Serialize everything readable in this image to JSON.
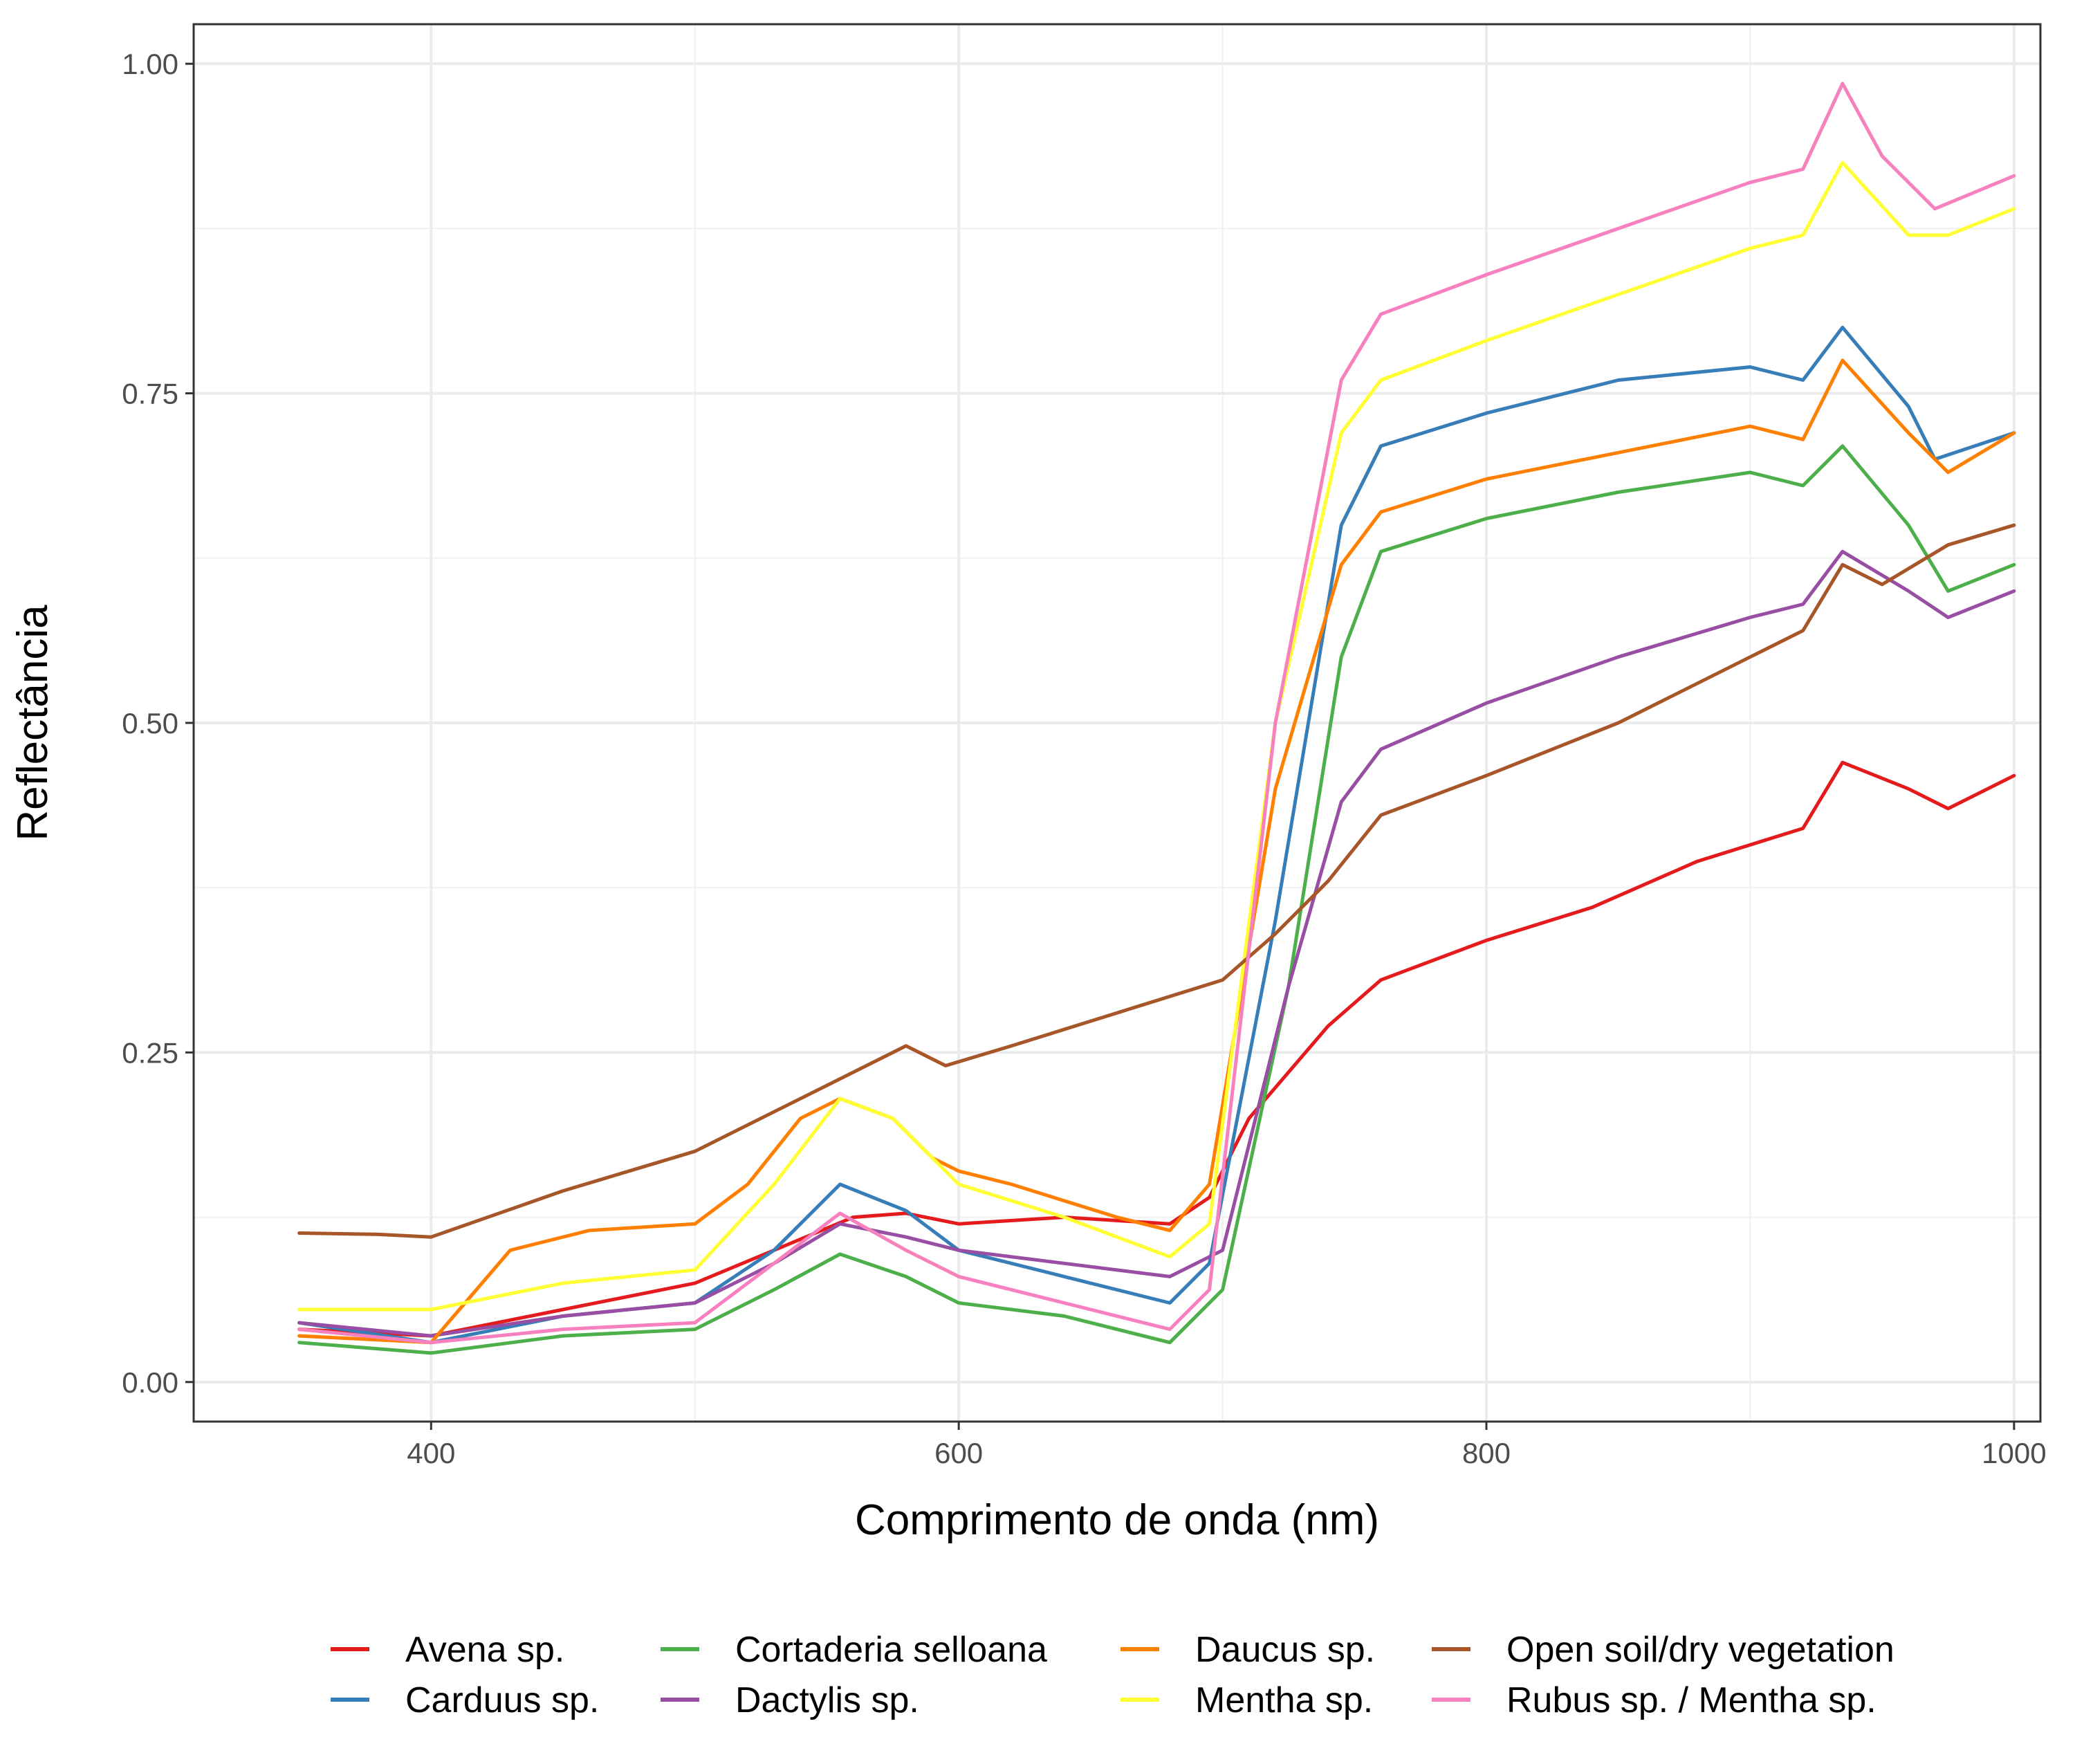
{
  "chart_data": {
    "type": "line",
    "xlabel": "Comprimento de onda (nm)",
    "ylabel": "Reflectância",
    "xlim": [
      310,
      1010
    ],
    "ylim": [
      -0.03,
      1.03
    ],
    "x_ticks": [
      400,
      600,
      800,
      1000
    ],
    "x_tick_labels": [
      "400",
      "600",
      "800",
      "1000"
    ],
    "y_ticks": [
      0,
      0.25,
      0.5,
      0.75,
      1
    ],
    "y_tick_labels": [
      "0.00",
      "0.25",
      "0.50",
      "0.75",
      "1.00"
    ],
    "grid": true,
    "legend_position": "bottom",
    "series": [
      {
        "name": "Avena sp.",
        "color": "#E41A1C",
        "points": [
          [
            350,
            0.04
          ],
          [
            400,
            0.035
          ],
          [
            450,
            0.055
          ],
          [
            500,
            0.075
          ],
          [
            530,
            0.1
          ],
          [
            560,
            0.125
          ],
          [
            580,
            0.128
          ],
          [
            600,
            0.12
          ],
          [
            640,
            0.125
          ],
          [
            680,
            0.12
          ],
          [
            695,
            0.14
          ],
          [
            710,
            0.2
          ],
          [
            740,
            0.27
          ],
          [
            760,
            0.305
          ],
          [
            800,
            0.335
          ],
          [
            840,
            0.36
          ],
          [
            880,
            0.395
          ],
          [
            920,
            0.42
          ],
          [
            935,
            0.47
          ],
          [
            960,
            0.45
          ],
          [
            975,
            0.435
          ],
          [
            1000,
            0.46
          ]
        ]
      },
      {
        "name": "Carduus sp.",
        "color": "#377EB8",
        "points": [
          [
            350,
            0.045
          ],
          [
            400,
            0.03
          ],
          [
            450,
            0.05
          ],
          [
            500,
            0.06
          ],
          [
            530,
            0.1
          ],
          [
            555,
            0.15
          ],
          [
            580,
            0.13
          ],
          [
            600,
            0.1
          ],
          [
            640,
            0.08
          ],
          [
            680,
            0.06
          ],
          [
            695,
            0.09
          ],
          [
            720,
            0.35
          ],
          [
            745,
            0.65
          ],
          [
            760,
            0.71
          ],
          [
            800,
            0.735
          ],
          [
            850,
            0.76
          ],
          [
            900,
            0.77
          ],
          [
            920,
            0.76
          ],
          [
            935,
            0.8
          ],
          [
            960,
            0.74
          ],
          [
            970,
            0.7
          ],
          [
            1000,
            0.72
          ]
        ]
      },
      {
        "name": "Cortaderia selloana",
        "color": "#4DAF4A",
        "points": [
          [
            350,
            0.03
          ],
          [
            400,
            0.022
          ],
          [
            450,
            0.035
          ],
          [
            500,
            0.04
          ],
          [
            530,
            0.07
          ],
          [
            555,
            0.097
          ],
          [
            580,
            0.08
          ],
          [
            600,
            0.06
          ],
          [
            640,
            0.05
          ],
          [
            680,
            0.03
          ],
          [
            700,
            0.07
          ],
          [
            725,
            0.3
          ],
          [
            745,
            0.55
          ],
          [
            760,
            0.63
          ],
          [
            800,
            0.655
          ],
          [
            850,
            0.675
          ],
          [
            900,
            0.69
          ],
          [
            920,
            0.68
          ],
          [
            935,
            0.71
          ],
          [
            960,
            0.65
          ],
          [
            975,
            0.6
          ],
          [
            1000,
            0.62
          ]
        ]
      },
      {
        "name": "Dactylis sp.",
        "color": "#984EA3",
        "points": [
          [
            350,
            0.045
          ],
          [
            400,
            0.035
          ],
          [
            450,
            0.05
          ],
          [
            500,
            0.06
          ],
          [
            530,
            0.09
          ],
          [
            555,
            0.12
          ],
          [
            580,
            0.11
          ],
          [
            600,
            0.1
          ],
          [
            640,
            0.09
          ],
          [
            680,
            0.08
          ],
          [
            700,
            0.1
          ],
          [
            725,
            0.3
          ],
          [
            745,
            0.44
          ],
          [
            760,
            0.48
          ],
          [
            800,
            0.515
          ],
          [
            850,
            0.55
          ],
          [
            900,
            0.58
          ],
          [
            920,
            0.59
          ],
          [
            935,
            0.63
          ],
          [
            960,
            0.6
          ],
          [
            975,
            0.58
          ],
          [
            1000,
            0.6
          ]
        ]
      },
      {
        "name": "Daucus sp.",
        "color": "#FF7F00",
        "points": [
          [
            350,
            0.035
          ],
          [
            400,
            0.03
          ],
          [
            430,
            0.1
          ],
          [
            460,
            0.115
          ],
          [
            500,
            0.12
          ],
          [
            520,
            0.15
          ],
          [
            540,
            0.2
          ],
          [
            555,
            0.215
          ],
          [
            575,
            0.2
          ],
          [
            590,
            0.17
          ],
          [
            600,
            0.16
          ],
          [
            620,
            0.15
          ],
          [
            660,
            0.125
          ],
          [
            680,
            0.115
          ],
          [
            695,
            0.15
          ],
          [
            720,
            0.45
          ],
          [
            745,
            0.62
          ],
          [
            760,
            0.66
          ],
          [
            800,
            0.685
          ],
          [
            850,
            0.705
          ],
          [
            900,
            0.725
          ],
          [
            920,
            0.715
          ],
          [
            935,
            0.775
          ],
          [
            960,
            0.72
          ],
          [
            975,
            0.69
          ],
          [
            1000,
            0.72
          ]
        ]
      },
      {
        "name": "Mentha sp.",
        "color": "#FFFF33",
        "points": [
          [
            350,
            0.055
          ],
          [
            400,
            0.055
          ],
          [
            450,
            0.075
          ],
          [
            500,
            0.085
          ],
          [
            530,
            0.15
          ],
          [
            555,
            0.215
          ],
          [
            575,
            0.2
          ],
          [
            600,
            0.15
          ],
          [
            640,
            0.125
          ],
          [
            680,
            0.095
          ],
          [
            695,
            0.12
          ],
          [
            720,
            0.5
          ],
          [
            745,
            0.72
          ],
          [
            760,
            0.76
          ],
          [
            800,
            0.79
          ],
          [
            850,
            0.825
          ],
          [
            900,
            0.86
          ],
          [
            920,
            0.87
          ],
          [
            935,
            0.925
          ],
          [
            960,
            0.87
          ],
          [
            975,
            0.87
          ],
          [
            1000,
            0.89
          ]
        ]
      },
      {
        "name": "Open soil/dry vegetation",
        "color": "#A65628",
        "points": [
          [
            350,
            0.113
          ],
          [
            380,
            0.112
          ],
          [
            400,
            0.11
          ],
          [
            450,
            0.145
          ],
          [
            500,
            0.175
          ],
          [
            550,
            0.225
          ],
          [
            580,
            0.255
          ],
          [
            595,
            0.24
          ],
          [
            620,
            0.255
          ],
          [
            660,
            0.28
          ],
          [
            700,
            0.305
          ],
          [
            720,
            0.34
          ],
          [
            740,
            0.38
          ],
          [
            760,
            0.43
          ],
          [
            800,
            0.46
          ],
          [
            850,
            0.5
          ],
          [
            900,
            0.55
          ],
          [
            920,
            0.57
          ],
          [
            935,
            0.62
          ],
          [
            950,
            0.605
          ],
          [
            975,
            0.635
          ],
          [
            1000,
            0.65
          ]
        ]
      },
      {
        "name": "Rubus sp. / Mentha sp.",
        "color": "#F781BF",
        "points": [
          [
            350,
            0.04
          ],
          [
            400,
            0.03
          ],
          [
            450,
            0.04
          ],
          [
            500,
            0.045
          ],
          [
            530,
            0.09
          ],
          [
            555,
            0.128
          ],
          [
            580,
            0.1
          ],
          [
            600,
            0.08
          ],
          [
            640,
            0.06
          ],
          [
            680,
            0.04
          ],
          [
            695,
            0.07
          ],
          [
            720,
            0.5
          ],
          [
            745,
            0.76
          ],
          [
            760,
            0.81
          ],
          [
            800,
            0.84
          ],
          [
            850,
            0.875
          ],
          [
            900,
            0.91
          ],
          [
            920,
            0.92
          ],
          [
            935,
            0.985
          ],
          [
            950,
            0.93
          ],
          [
            970,
            0.89
          ],
          [
            1000,
            0.915
          ]
        ]
      }
    ]
  }
}
